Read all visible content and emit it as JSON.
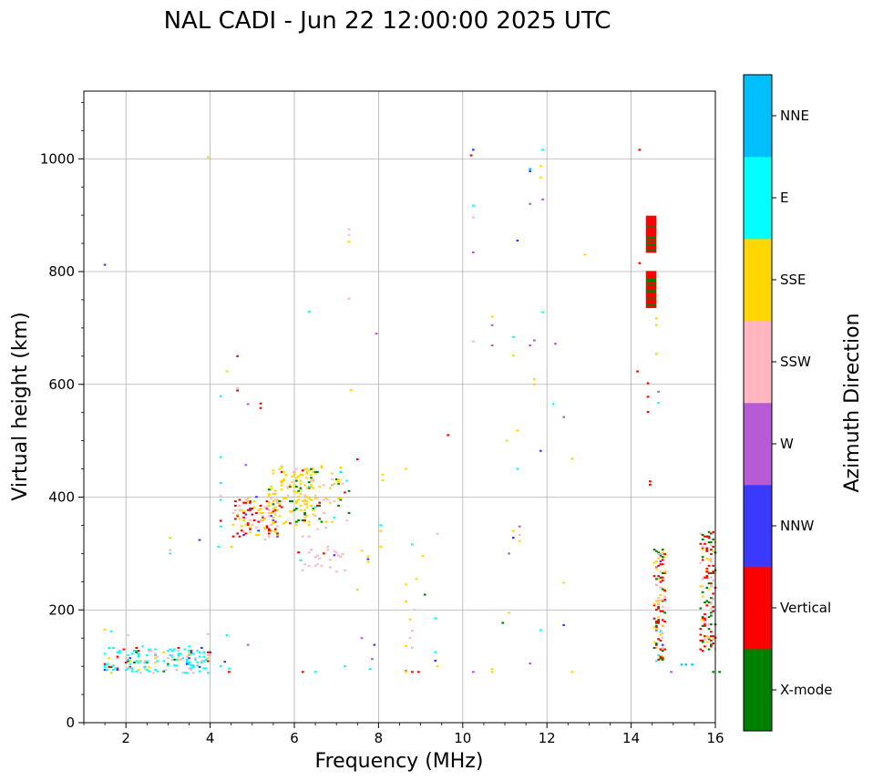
{
  "chart_data": {
    "type": "scatter",
    "title": "NAL CADI - Jun 22 12:00:00 2025 UTC",
    "xlabel": "Frequency (MHz)",
    "ylabel": "Virtual height (km)",
    "xlim": [
      1,
      16
    ],
    "ylim": [
      0,
      1120
    ],
    "xticks": [
      2,
      4,
      6,
      8,
      10,
      12,
      14,
      16
    ],
    "yticks": [
      0,
      200,
      400,
      600,
      800,
      1000
    ],
    "grid": true,
    "colorbar": {
      "title": "Azimuth Direction",
      "categories": [
        {
          "name": "X-mode",
          "color": "#008000"
        },
        {
          "name": "Vertical",
          "color": "#ff0000"
        },
        {
          "name": "NNW",
          "color": "#3a3aff"
        },
        {
          "name": "W",
          "color": "#b65ad6"
        },
        {
          "name": "SSW",
          "color": "#ffb6c1"
        },
        {
          "name": "SSE",
          "color": "#ffd700"
        },
        {
          "name": "E",
          "color": "#00ffff"
        },
        {
          "name": "NNE",
          "color": "#00bfff"
        }
      ]
    },
    "points": [
      [
        1.5,
        812,
        "NNW"
      ],
      [
        3.95,
        1003,
        "SSE"
      ],
      [
        14.2,
        1016,
        "Vertical"
      ],
      [
        10.2,
        1006,
        "Vertical"
      ],
      [
        10.25,
        1016,
        "NNW"
      ],
      [
        11.9,
        1016,
        "E"
      ],
      [
        11.6,
        982,
        "NNE"
      ],
      [
        11.6,
        978,
        "NNW"
      ],
      [
        11.85,
        987,
        "SSE"
      ],
      [
        11.85,
        967,
        "SSE"
      ],
      [
        10.25,
        917,
        "E"
      ],
      [
        10.25,
        896,
        "SSW"
      ],
      [
        11.6,
        920,
        "W"
      ],
      [
        11.9,
        928,
        "W"
      ],
      [
        11.3,
        855,
        "NNW"
      ],
      [
        10.25,
        834,
        "W"
      ],
      [
        12.9,
        830,
        "SSE"
      ],
      [
        7.3,
        875,
        "SSW"
      ],
      [
        7.3,
        865,
        "SSW"
      ],
      [
        7.3,
        853,
        "SSE"
      ],
      [
        14.2,
        815,
        "Vertical"
      ],
      [
        7.3,
        752,
        "SSW"
      ],
      [
        6.35,
        729,
        "E"
      ],
      [
        11.9,
        728,
        "E"
      ],
      [
        10.7,
        720,
        "SSE"
      ],
      [
        10.7,
        705,
        "W"
      ],
      [
        11.2,
        684,
        "E"
      ],
      [
        11.7,
        678,
        "W"
      ],
      [
        12.2,
        672,
        "W"
      ],
      [
        10.25,
        676,
        "SSW"
      ],
      [
        10.7,
        669,
        "W"
      ],
      [
        11.2,
        651,
        "SSE"
      ],
      [
        11.6,
        669,
        "W"
      ],
      [
        7.95,
        690,
        "W"
      ],
      [
        14.6,
        717,
        "SSE"
      ],
      [
        14.6,
        705,
        "SSE"
      ],
      [
        14.6,
        654,
        "SSE"
      ],
      [
        4.65,
        650,
        "Vertical"
      ],
      [
        4.4,
        623,
        "SSE"
      ],
      [
        14.15,
        623,
        "Vertical"
      ],
      [
        14.4,
        602,
        "Vertical"
      ],
      [
        11.7,
        609,
        "SSE"
      ],
      [
        11.7,
        600,
        "SSE"
      ],
      [
        14.4,
        578,
        "Vertical"
      ],
      [
        14.65,
        587,
        "W"
      ],
      [
        14.65,
        567,
        "E"
      ],
      [
        4.25,
        579,
        "E"
      ],
      [
        4.65,
        593,
        "SSW"
      ],
      [
        4.65,
        589,
        "Vertical"
      ],
      [
        4.9,
        565,
        "W"
      ],
      [
        5.2,
        566,
        "Vertical"
      ],
      [
        5.2,
        558,
        "Vertical"
      ],
      [
        7.35,
        590,
        "SSE"
      ],
      [
        12.15,
        565,
        "E"
      ],
      [
        12.4,
        542,
        "W"
      ],
      [
        14.4,
        551,
        "Vertical"
      ],
      [
        11.3,
        518,
        "SSE"
      ],
      [
        9.65,
        510,
        "Vertical"
      ],
      [
        11.05,
        500,
        "SSE"
      ],
      [
        11.85,
        482,
        "NNW"
      ],
      [
        12.6,
        468,
        "SSE"
      ],
      [
        11.3,
        450,
        "E"
      ],
      [
        7.5,
        467,
        "Vertical"
      ],
      [
        8.65,
        450,
        "SSE"
      ],
      [
        8.1,
        440,
        "SSE"
      ],
      [
        8.1,
        430,
        "SSE"
      ],
      [
        4.25,
        471,
        "E"
      ],
      [
        4.85,
        457,
        "W"
      ],
      [
        14.45,
        428,
        "Vertical"
      ],
      [
        14.45,
        422,
        "Vertical"
      ],
      [
        4.25,
        425,
        "E"
      ],
      [
        4.25,
        402,
        "SSW"
      ],
      [
        4.25,
        395,
        "E"
      ],
      [
        4.25,
        358,
        "Vertical"
      ],
      [
        4.25,
        348,
        "E"
      ],
      [
        8.05,
        350,
        "E"
      ],
      [
        8.05,
        340,
        "SSE"
      ],
      [
        9.4,
        335,
        "SSW"
      ],
      [
        11.2,
        340,
        "SSE"
      ],
      [
        11.35,
        348,
        "W"
      ],
      [
        11.35,
        333,
        "SSW"
      ],
      [
        11.2,
        328,
        "NNW"
      ],
      [
        11.35,
        322,
        "SSE"
      ],
      [
        3.05,
        328,
        "SSE"
      ],
      [
        3.05,
        306,
        "SSW"
      ],
      [
        3.05,
        300,
        "E"
      ],
      [
        3.75,
        324,
        "NNW"
      ],
      [
        4.2,
        312,
        "E"
      ],
      [
        4.5,
        312,
        "SSE"
      ],
      [
        7.6,
        305,
        "SSE"
      ],
      [
        7.75,
        295,
        "SSE"
      ],
      [
        7.75,
        290,
        "NNW"
      ],
      [
        7.75,
        285,
        "SSE"
      ],
      [
        8.05,
        312,
        "SSE"
      ],
      [
        8.8,
        316,
        "E"
      ],
      [
        9.05,
        296,
        "SSE"
      ],
      [
        11.1,
        300,
        "W"
      ],
      [
        12.4,
        248,
        "SSE"
      ],
      [
        8.65,
        245,
        "SSE"
      ],
      [
        8.9,
        255,
        "SSE"
      ],
      [
        9.1,
        227,
        "X-mode"
      ],
      [
        8.65,
        215,
        "SSE"
      ],
      [
        7.5,
        236,
        "SSE"
      ],
      [
        7.2,
        270,
        "SSW"
      ],
      [
        7.0,
        268,
        "SSW"
      ],
      [
        8.85,
        200,
        "SSW"
      ],
      [
        9.35,
        185,
        "E"
      ],
      [
        10.95,
        177,
        "X-mode"
      ],
      [
        11.85,
        164,
        "E"
      ],
      [
        12.4,
        173,
        "NNW"
      ],
      [
        11.1,
        195,
        "SSE"
      ],
      [
        8.75,
        183,
        "SSE"
      ],
      [
        8.8,
        163,
        "SSW"
      ],
      [
        8.75,
        150,
        "SSW"
      ],
      [
        8.65,
        136,
        "SSE"
      ],
      [
        7.6,
        150,
        "W"
      ],
      [
        7.9,
        138,
        "NNW"
      ],
      [
        8.8,
        133,
        "SSW"
      ],
      [
        9.35,
        125,
        "E"
      ],
      [
        7.85,
        113,
        "W"
      ],
      [
        9.35,
        110,
        "NNW"
      ],
      [
        9.4,
        100,
        "SSE"
      ],
      [
        7.2,
        100,
        "E"
      ],
      [
        7.8,
        95,
        "E"
      ],
      [
        11.6,
        105,
        "W"
      ],
      [
        14.95,
        90,
        "W"
      ],
      [
        15.2,
        103,
        "NNE"
      ],
      [
        15.3,
        103,
        "NNE"
      ],
      [
        15.45,
        103,
        "NNE"
      ],
      [
        15.95,
        90,
        "X-mode"
      ],
      [
        16.1,
        90,
        "X-mode"
      ],
      [
        12.6,
        90,
        "SSE"
      ],
      [
        10.25,
        90,
        "W"
      ],
      [
        10.7,
        90,
        "SSE"
      ],
      [
        10.7,
        95,
        "SSE"
      ],
      [
        8.65,
        92,
        "W"
      ],
      [
        8.8,
        90,
        "Vertical"
      ],
      [
        8.95,
        90,
        "Vertical"
      ],
      [
        8.65,
        90,
        "SSE"
      ],
      [
        6.2,
        90,
        "Vertical"
      ],
      [
        6.5,
        90,
        "E"
      ],
      [
        4.25,
        100,
        "E"
      ],
      [
        4.35,
        108,
        "NNW"
      ],
      [
        4.45,
        96,
        "E"
      ],
      [
        4.45,
        90,
        "Vertical"
      ],
      [
        4.4,
        155,
        "E"
      ],
      [
        4.9,
        138,
        "W"
      ],
      [
        3.95,
        157,
        "SSW"
      ],
      [
        1.5,
        165,
        "SSE"
      ],
      [
        1.65,
        162,
        "E"
      ],
      [
        2.05,
        155,
        "SSW"
      ],
      [
        6.1,
        302,
        "Vertical"
      ],
      [
        6.7,
        300,
        "Vertical"
      ],
      [
        6.95,
        297,
        "NNW"
      ],
      [
        6.15,
        288,
        "E"
      ],
      [
        5.3,
        325,
        "SSW"
      ]
    ],
    "clusters": [
      {
        "x": [
          1.5,
          4.0
        ],
        "y": [
          88,
          135
        ],
        "count": 180,
        "mix": {
          "E": 0.55,
          "SSW": 0.15,
          "Vertical": 0.1,
          "SSE": 0.1,
          "X-mode": 0.05,
          "NNW": 0.05
        }
      },
      {
        "x": [
          4.55,
          5.7
        ],
        "y": [
          330,
          400
        ],
        "count": 110,
        "mix": {
          "Vertical": 0.4,
          "SSE": 0.3,
          "SSW": 0.25,
          "NNW": 0.05
        }
      },
      {
        "x": [
          5.4,
          6.5
        ],
        "y": [
          350,
          455
        ],
        "count": 120,
        "mix": {
          "SSE": 0.7,
          "SSW": 0.1,
          "Vertical": 0.1,
          "X-mode": 0.1
        }
      },
      {
        "x": [
          6.0,
          7.3
        ],
        "y": [
          355,
          455
        ],
        "count": 80,
        "mix": {
          "SSE": 0.4,
          "SSW": 0.25,
          "X-mode": 0.2,
          "Vertical": 0.1,
          "E": 0.05
        }
      },
      {
        "x": [
          6.2,
          7.2
        ],
        "y": [
          270,
          350
        ],
        "count": 25,
        "mix": {
          "SSW": 1.0
        }
      },
      {
        "x": [
          14.55,
          14.8
        ],
        "y": [
          110,
          310
        ],
        "count": 120,
        "mix": {
          "Vertical": 0.3,
          "SSE": 0.2,
          "SSW": 0.2,
          "X-mode": 0.15,
          "NNW": 0.05,
          "E": 0.05,
          "W": 0.05
        }
      },
      {
        "x": [
          15.65,
          16.0
        ],
        "y": [
          128,
          340
        ],
        "count": 130,
        "mix": {
          "Vertical": 0.45,
          "X-mode": 0.25,
          "SSW": 0.2,
          "SSE": 0.1
        }
      }
    ],
    "bars": [
      {
        "x": [
          14.35,
          14.6
        ],
        "y": [
          835,
          900
        ],
        "mix": {
          "Vertical": 0.8,
          "X-mode": 0.2
        }
      },
      {
        "x": [
          14.35,
          14.6
        ],
        "y": [
          737,
          802
        ],
        "mix": {
          "Vertical": 0.85,
          "X-mode": 0.15
        }
      }
    ]
  }
}
